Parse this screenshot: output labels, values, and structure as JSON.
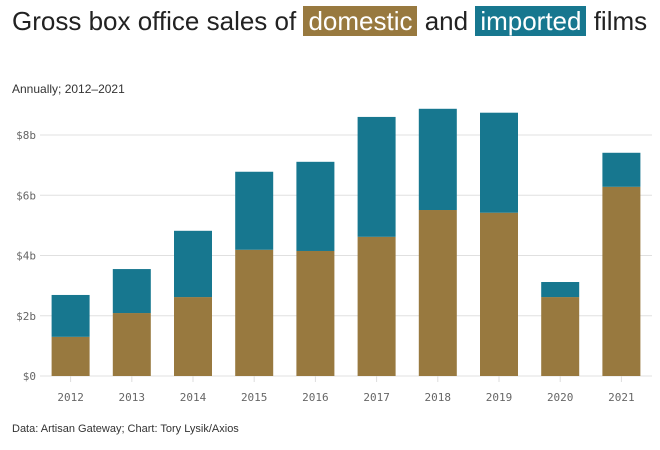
{
  "title": {
    "pre": "Gross box office sales of ",
    "domestic": "domestic",
    "mid": " and ",
    "imported": "imported",
    "post": " films"
  },
  "subtitle": "Annually; 2012–2021",
  "source": "Data: Artisan Gateway; Chart: Tory Lysik/Axios",
  "colors": {
    "domestic": "#98793f",
    "imported": "#17778f"
  },
  "chart_data": {
    "type": "bar",
    "stacked": true,
    "categories": [
      "2012",
      "2013",
      "2014",
      "2015",
      "2016",
      "2017",
      "2018",
      "2019",
      "2020",
      "2021"
    ],
    "series": [
      {
        "name": "domestic",
        "values": [
          1.3,
          2.09,
          2.62,
          4.19,
          4.15,
          4.62,
          5.51,
          5.42,
          2.62,
          6.28
        ]
      },
      {
        "name": "imported",
        "values": [
          1.39,
          1.46,
          2.2,
          2.59,
          2.96,
          3.98,
          3.36,
          3.32,
          0.5,
          1.13
        ]
      }
    ],
    "ylim": [
      0,
      8
    ],
    "yticks": [
      0,
      2,
      4,
      6,
      8
    ],
    "ytick_labels": [
      "$0",
      "$2b",
      "$4b",
      "$6b",
      "$8b"
    ],
    "grid": true,
    "unit": "billion USD"
  }
}
